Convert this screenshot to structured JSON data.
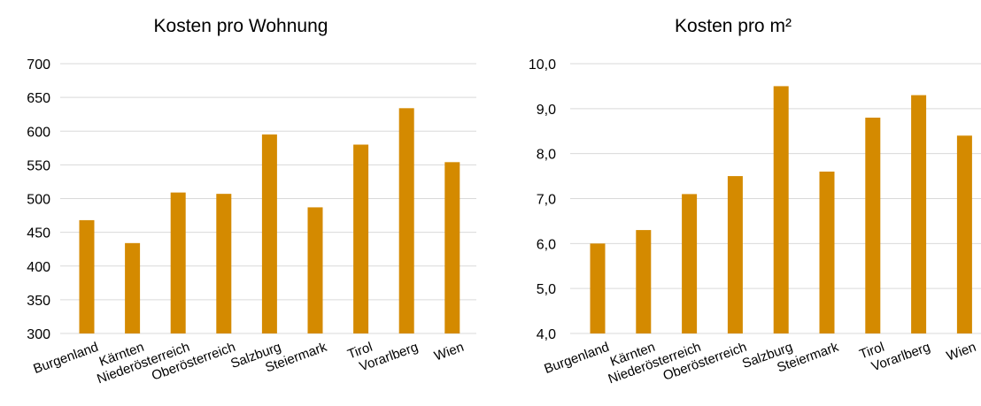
{
  "chart_data": [
    {
      "type": "bar",
      "title": "Kosten pro Wohnung",
      "categories": [
        "Burgenland",
        "Kärnten",
        "Niederösterreich",
        "Oberösterreich",
        "Salzburg",
        "Steiermark",
        "Tirol",
        "Vorarlberg",
        "Wien"
      ],
      "values": [
        468,
        434,
        509,
        507,
        595,
        487,
        580,
        634,
        554
      ],
      "ylim": [
        300,
        700
      ],
      "yticks": [
        "300",
        "350",
        "400",
        "450",
        "500",
        "550",
        "600",
        "650",
        "700"
      ],
      "grid": true,
      "bar_color": "#d48a00"
    },
    {
      "type": "bar",
      "title": "Kosten pro m²",
      "categories": [
        "Burgenland",
        "Kärnten",
        "Niederösterreich",
        "Oberösterreich",
        "Salzburg",
        "Steiermark",
        "Tirol",
        "Vorarlberg",
        "Wien"
      ],
      "values": [
        6.0,
        6.3,
        7.1,
        7.5,
        9.5,
        7.6,
        8.8,
        9.3,
        8.4
      ],
      "ylim": [
        4.0,
        10.0
      ],
      "yticks": [
        "4,0",
        "5,0",
        "6,0",
        "7,0",
        "8,0",
        "9,0",
        "10,0"
      ],
      "grid": true,
      "bar_color": "#d48a00"
    }
  ]
}
